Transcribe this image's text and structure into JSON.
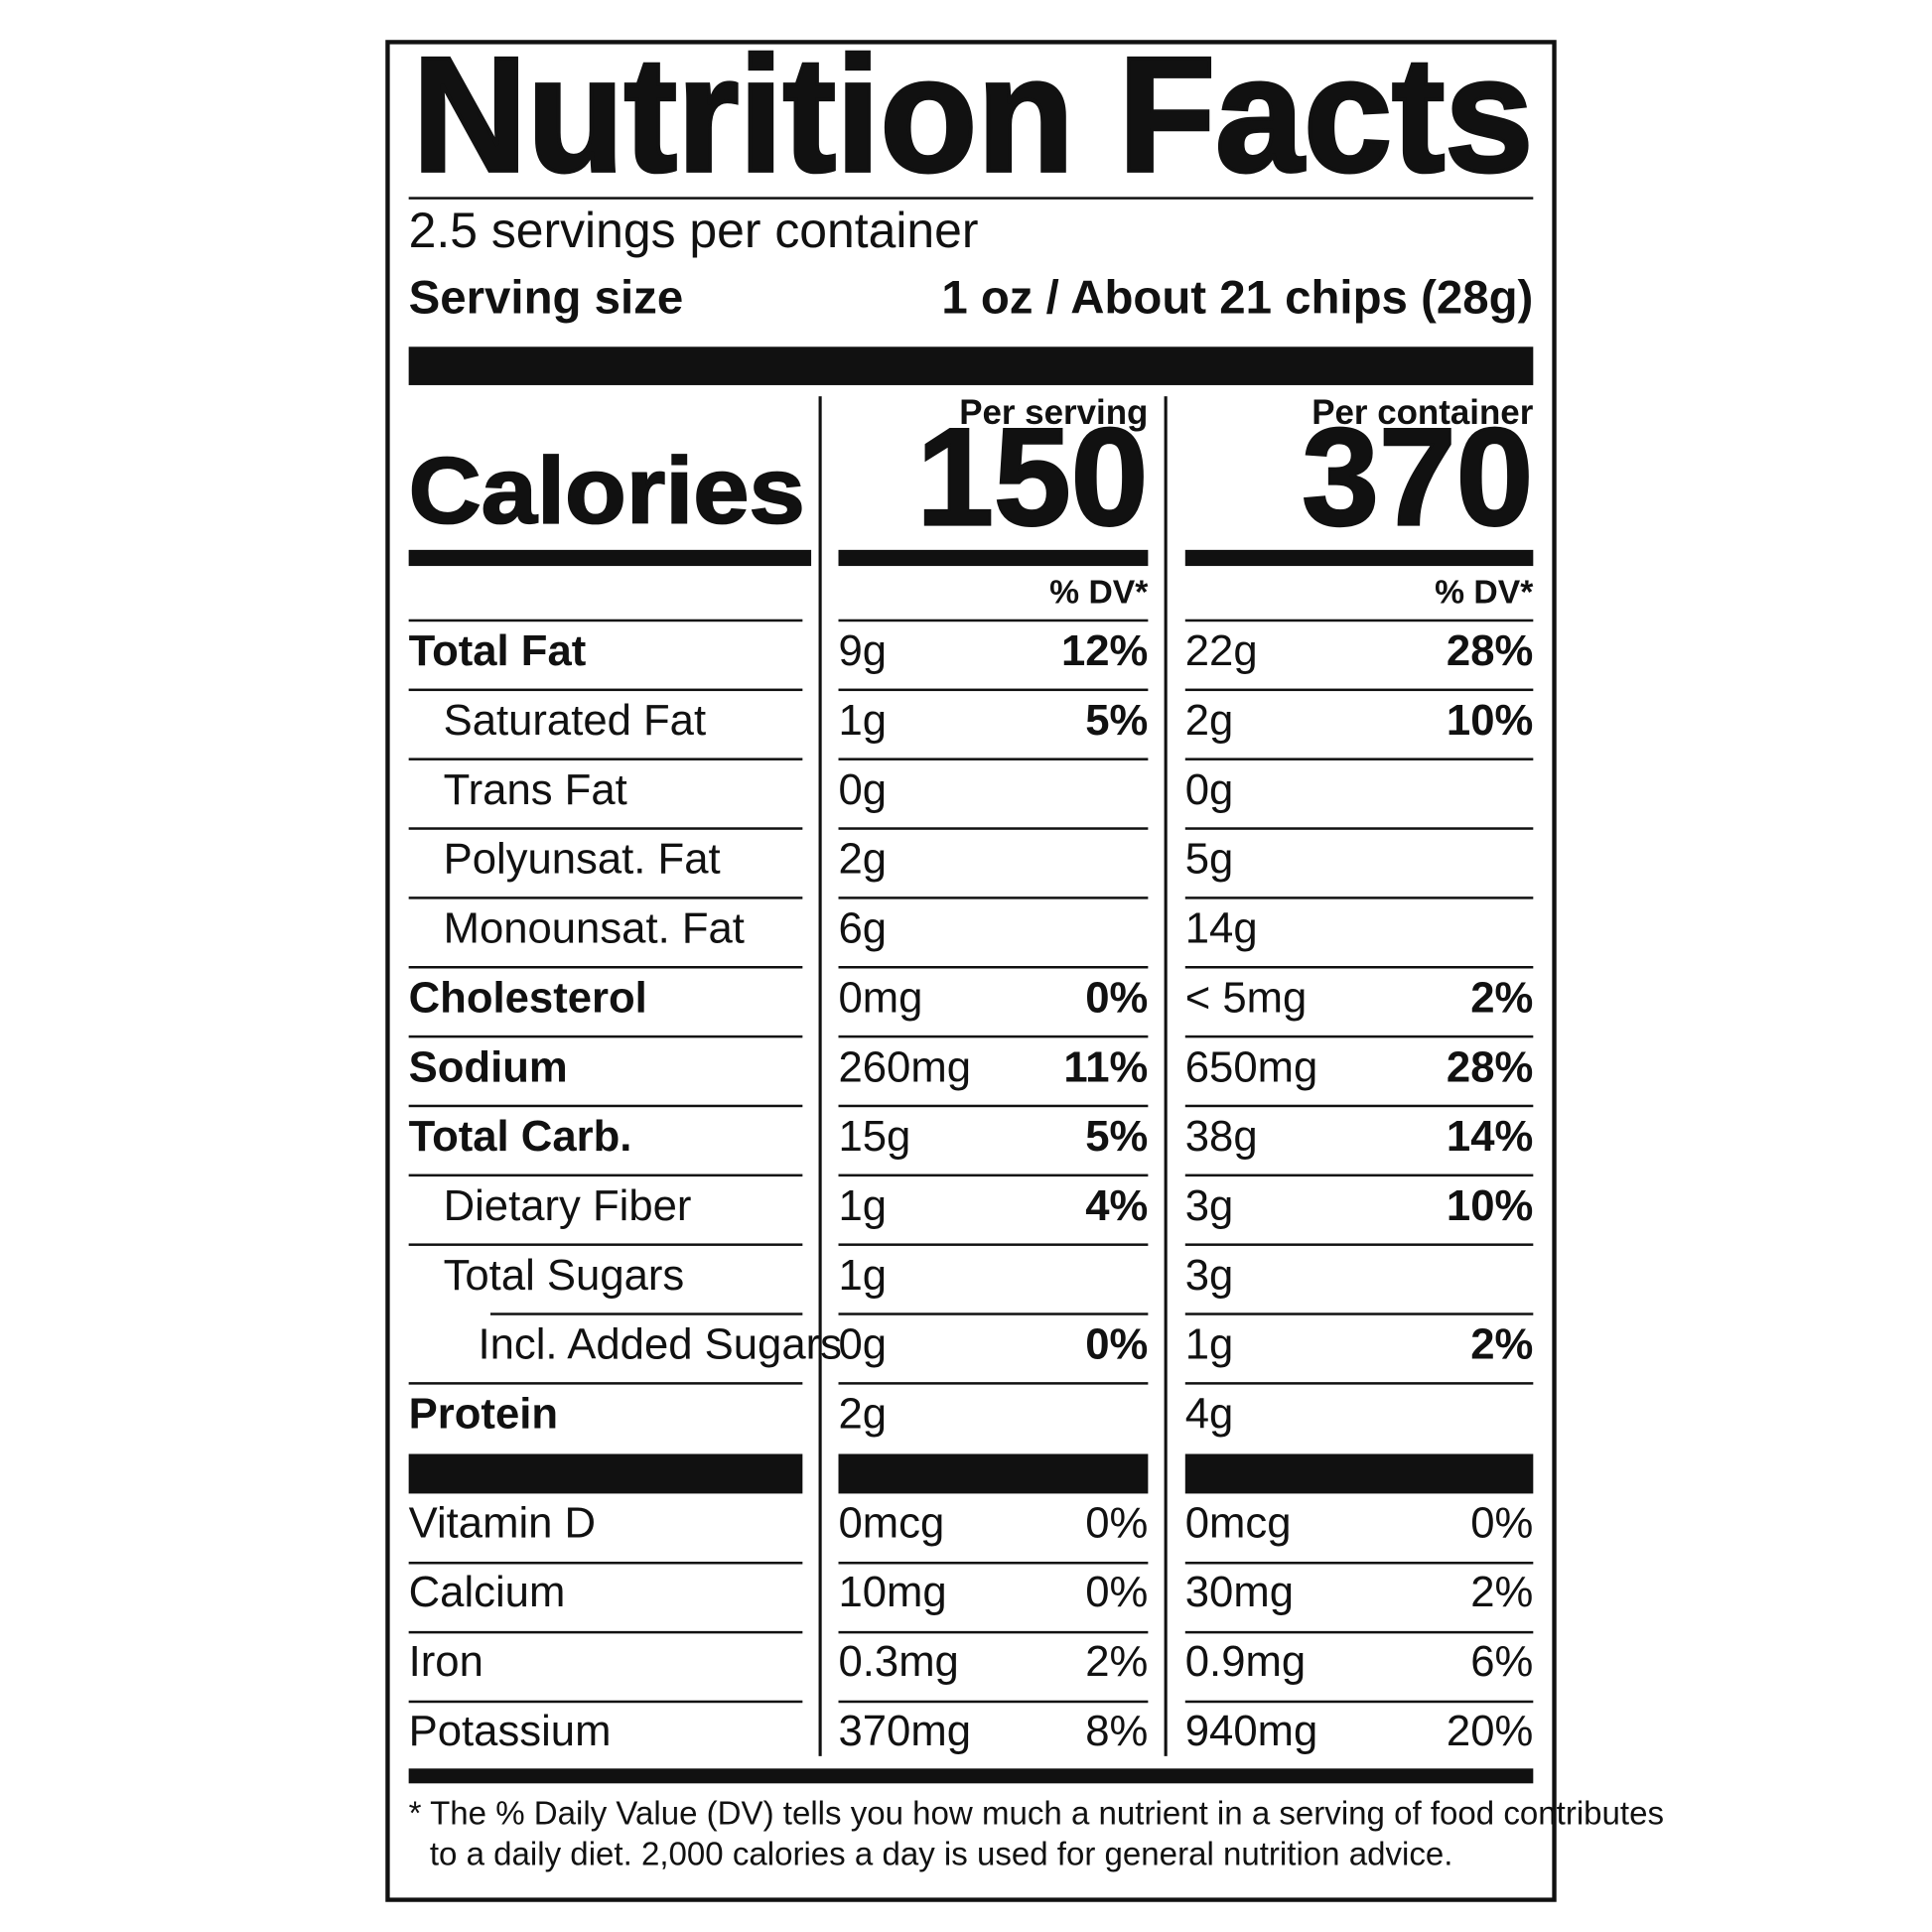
{
  "header": {
    "title": "Nutrition Facts",
    "servings": "2.5 servings per container",
    "serving_size_label": "Serving size",
    "serving_size_value": "1 oz / About 21 chips (28g)"
  },
  "calories": {
    "label": "Calories",
    "columns": [
      {
        "heading": "Per serving",
        "value": "150",
        "dv_heading": "% DV*"
      },
      {
        "heading": "Per container",
        "value": "370",
        "dv_heading": "% DV*"
      }
    ]
  },
  "nutrients": [
    {
      "name": "Total Fat",
      "bold": true,
      "indent": 0,
      "values": [
        {
          "amount": "9g",
          "dv": "12%"
        },
        {
          "amount": "22g",
          "dv": "28%"
        }
      ]
    },
    {
      "name": "Saturated Fat",
      "bold": false,
      "indent": 1,
      "values": [
        {
          "amount": "1g",
          "dv": "5%"
        },
        {
          "amount": "2g",
          "dv": "10%"
        }
      ]
    },
    {
      "name": "Trans Fat",
      "bold": false,
      "indent": 1,
      "values": [
        {
          "amount": "0g"
        },
        {
          "amount": "0g"
        }
      ]
    },
    {
      "name": "Polyunsat. Fat",
      "bold": false,
      "indent": 1,
      "values": [
        {
          "amount": "2g"
        },
        {
          "amount": "5g"
        }
      ]
    },
    {
      "name": "Monounsat. Fat",
      "bold": false,
      "indent": 1,
      "values": [
        {
          "amount": "6g"
        },
        {
          "amount": "14g"
        }
      ]
    },
    {
      "name": "Cholesterol",
      "bold": true,
      "indent": 0,
      "values": [
        {
          "amount": "0mg",
          "dv": "0%"
        },
        {
          "amount": "< 5mg",
          "dv": "2%"
        }
      ]
    },
    {
      "name": "Sodium",
      "bold": true,
      "indent": 0,
      "values": [
        {
          "amount": "260mg",
          "dv": "11%"
        },
        {
          "amount": "650mg",
          "dv": "28%"
        }
      ]
    },
    {
      "name": "Total Carb.",
      "bold": true,
      "indent": 0,
      "values": [
        {
          "amount": "15g",
          "dv": "5%"
        },
        {
          "amount": "38g",
          "dv": "14%"
        }
      ]
    },
    {
      "name": "Dietary Fiber",
      "bold": false,
      "indent": 1,
      "values": [
        {
          "amount": "1g",
          "dv": "4%"
        },
        {
          "amount": "3g",
          "dv": "10%"
        }
      ]
    },
    {
      "name": "Total Sugars",
      "bold": false,
      "indent": 1,
      "values": [
        {
          "amount": "1g"
        },
        {
          "amount": "3g"
        }
      ]
    },
    {
      "name": "Incl. Added Sugars",
      "bold": false,
      "indent": 2,
      "values": [
        {
          "amount": "0g",
          "dv": "0%"
        },
        {
          "amount": "1g",
          "dv": "2%"
        }
      ]
    },
    {
      "name": "Protein",
      "bold": true,
      "indent": 0,
      "values": [
        {
          "amount": "2g"
        },
        {
          "amount": "4g"
        }
      ]
    }
  ],
  "vitamins": [
    {
      "name": "Vitamin D",
      "values": [
        {
          "amount": "0mcg",
          "dv": "0%"
        },
        {
          "amount": "0mcg",
          "dv": "0%"
        }
      ]
    },
    {
      "name": "Calcium",
      "values": [
        {
          "amount": "10mg",
          "dv": "0%"
        },
        {
          "amount": "30mg",
          "dv": "2%"
        }
      ]
    },
    {
      "name": "Iron",
      "values": [
        {
          "amount": "0.3mg",
          "dv": "2%"
        },
        {
          "amount": "0.9mg",
          "dv": "6%"
        }
      ]
    },
    {
      "name": "Potassium",
      "values": [
        {
          "amount": "370mg",
          "dv": "8%"
        },
        {
          "amount": "940mg",
          "dv": "20%"
        }
      ]
    }
  ],
  "footnote": [
    "* The % Daily Value (DV) tells you how much a nutrient in a serving of food contributes",
    "to a daily diet. 2,000 calories a day is used for general nutrition advice."
  ]
}
